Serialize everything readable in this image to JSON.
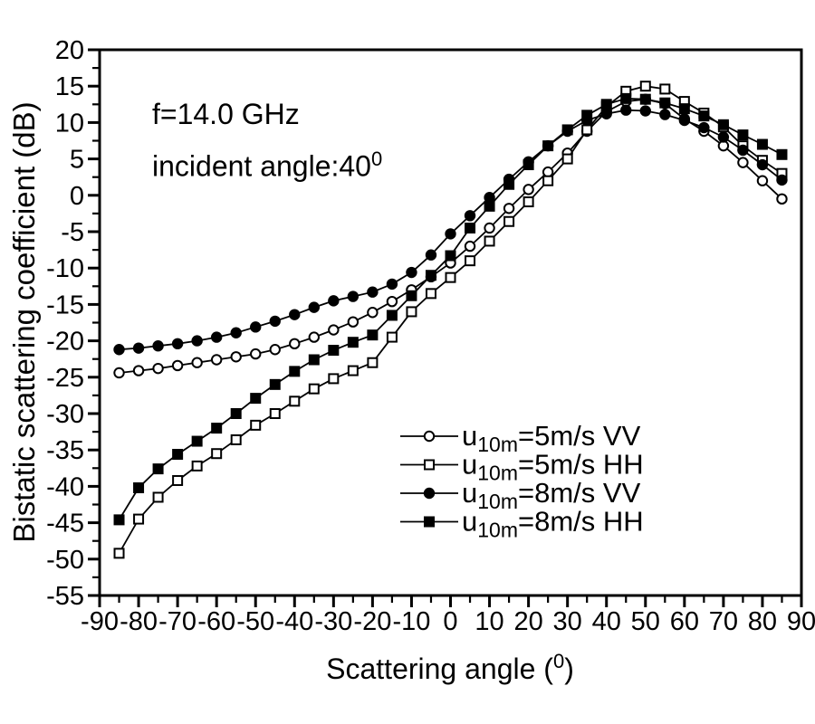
{
  "chart_data": {
    "type": "line",
    "title": "",
    "ylabel": "Bistatic scattering coefficient (dB)",
    "xlabel_pre": "Scattering angle (",
    "xlabel_sup": "0",
    "xlabel_post": ")",
    "annotation": {
      "line1": "f=14.0 GHz",
      "line2_pre": "incident angle:40",
      "line2_sup": "0"
    },
    "colors": {
      "ink": "#000000",
      "background": "#ffffff"
    },
    "xlim": [
      -90,
      90
    ],
    "ylim": [
      -55,
      20
    ],
    "xticks": {
      "major_step": 10,
      "minor_step": 5,
      "labels": [
        -90,
        -80,
        -70,
        -60,
        -50,
        -40,
        -30,
        -20,
        -10,
        0,
        10,
        20,
        30,
        40,
        50,
        60,
        70,
        80,
        90
      ]
    },
    "yticks": {
      "major_step": 5,
      "minor_step": 2.5,
      "labels": [
        20,
        15,
        10,
        5,
        0,
        -5,
        -10,
        -15,
        -20,
        -25,
        -30,
        -35,
        -40,
        -45,
        -50,
        -55
      ]
    },
    "legend_position": "lower-center",
    "grid": false,
    "x": [
      -85,
      -80,
      -75,
      -70,
      -65,
      -60,
      -55,
      -50,
      -45,
      -40,
      -35,
      -30,
      -25,
      -20,
      -15,
      -10,
      -5,
      0,
      5,
      10,
      15,
      20,
      25,
      30,
      35,
      40,
      45,
      50,
      55,
      60,
      65,
      70,
      75,
      80,
      85
    ],
    "series": [
      {
        "id": "u5-vv",
        "label_pre": "u",
        "label_sub": "10m",
        "label_post": "=5m/s VV",
        "marker": "circle",
        "fill": "open",
        "values": [
          -24.4,
          -24.1,
          -23.8,
          -23.4,
          -23.0,
          -22.6,
          -22.2,
          -21.8,
          -21.2,
          -20.4,
          -19.5,
          -18.5,
          -17.4,
          -16.1,
          -14.6,
          -13.0,
          -11.2,
          -9.3,
          -7.0,
          -4.5,
          -1.8,
          0.8,
          3.2,
          5.8,
          8.8,
          11.5,
          12.9,
          13.2,
          12.6,
          10.5,
          8.8,
          6.8,
          4.5,
          2.0,
          -0.5
        ]
      },
      {
        "id": "u5-hh",
        "label_pre": "u",
        "label_sub": "10m",
        "label_post": "=5m/s HH",
        "marker": "square",
        "fill": "open",
        "values": [
          -49.2,
          -44.5,
          -41.5,
          -39.2,
          -37.2,
          -35.5,
          -33.6,
          -31.6,
          -30.0,
          -28.3,
          -26.6,
          -25.2,
          -24.1,
          -23.0,
          -19.5,
          -16.0,
          -13.5,
          -11.3,
          -9.0,
          -6.3,
          -3.6,
          -0.9,
          2.0,
          5.0,
          9.0,
          12.2,
          14.3,
          15.0,
          14.6,
          12.9,
          11.3,
          9.4,
          6.8,
          4.8,
          3.0
        ]
      },
      {
        "id": "u8-vv",
        "label_pre": "u",
        "label_sub": "10m",
        "label_post": "=8m/s VV",
        "marker": "circle",
        "fill": "solid",
        "values": [
          -21.2,
          -21.0,
          -20.7,
          -20.4,
          -20.0,
          -19.5,
          -18.9,
          -18.1,
          -17.3,
          -16.4,
          -15.4,
          -14.5,
          -13.9,
          -13.3,
          -12.2,
          -10.6,
          -8.2,
          -5.3,
          -2.8,
          -0.3,
          2.2,
          4.6,
          6.8,
          8.8,
          10.3,
          11.2,
          11.7,
          11.6,
          11.1,
          10.3,
          9.3,
          8.0,
          6.2,
          4.2,
          2.1
        ]
      },
      {
        "id": "u8-hh",
        "label_pre": "u",
        "label_sub": "10m",
        "label_post": "=8m/s HH",
        "marker": "square",
        "fill": "solid",
        "values": [
          -44.6,
          -40.2,
          -37.6,
          -35.6,
          -33.8,
          -32.0,
          -30.0,
          -27.9,
          -26.0,
          -24.2,
          -22.6,
          -21.3,
          -20.2,
          -19.2,
          -16.5,
          -13.8,
          -11.0,
          -8.3,
          -4.5,
          -1.5,
          1.5,
          4.2,
          6.8,
          9.0,
          11.0,
          12.5,
          13.3,
          13.2,
          12.7,
          11.9,
          10.9,
          9.7,
          8.3,
          7.0,
          5.6
        ]
      }
    ]
  }
}
